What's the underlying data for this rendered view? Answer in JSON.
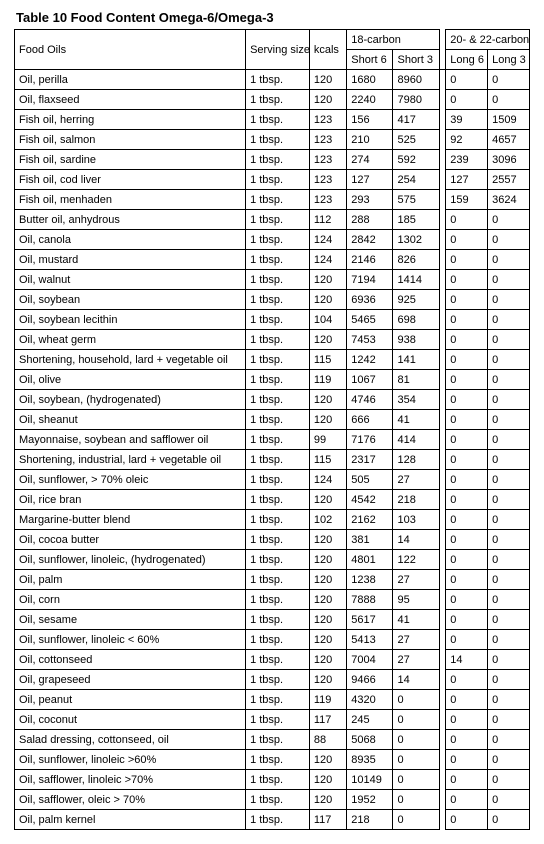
{
  "title": "Table 10 Food Content Omega-6/Omega-3",
  "headers": {
    "food": "Food Oils",
    "serving": "Serving size",
    "kcals": "kcals",
    "group18": "18-carbon",
    "group2022": "20- & 22-carbon",
    "short6": "Short 6",
    "short3": "Short 3",
    "long6": "Long 6",
    "long3": "Long 3"
  },
  "rows": [
    {
      "food": "Oil, perilla",
      "serv": "1 tbsp.",
      "kcal": "120",
      "s6": "1680",
      "s3": "8960",
      "l6": "0",
      "l3": "0"
    },
    {
      "food": "Oil, flaxseed",
      "serv": "1 tbsp.",
      "kcal": "120",
      "s6": "2240",
      "s3": "7980",
      "l6": "0",
      "l3": "0"
    },
    {
      "food": "Fish oil, herring",
      "serv": "1 tbsp.",
      "kcal": "123",
      "s6": "156",
      "s3": "417",
      "l6": "39",
      "l3": "1509"
    },
    {
      "food": "Fish oil, salmon",
      "serv": "1 tbsp.",
      "kcal": "123",
      "s6": "210",
      "s3": "525",
      "l6": "92",
      "l3": "4657"
    },
    {
      "food": "Fish oil, sardine",
      "serv": "1 tbsp.",
      "kcal": "123",
      "s6": "274",
      "s3": "592",
      "l6": "239",
      "l3": "3096"
    },
    {
      "food": "Fish oil, cod liver",
      "serv": "1 tbsp.",
      "kcal": "123",
      "s6": "127",
      "s3": "254",
      "l6": "127",
      "l3": "2557"
    },
    {
      "food": "Fish oil, menhaden",
      "serv": "1 tbsp.",
      "kcal": "123",
      "s6": "293",
      "s3": "575",
      "l6": "159",
      "l3": "3624"
    },
    {
      "food": "Butter oil, anhydrous",
      "serv": "1 tbsp.",
      "kcal": "112",
      "s6": "288",
      "s3": "185",
      "l6": "0",
      "l3": "0"
    },
    {
      "food": "Oil, canola",
      "serv": "1 tbsp.",
      "kcal": "124",
      "s6": "2842",
      "s3": "1302",
      "l6": "0",
      "l3": "0"
    },
    {
      "food": "Oil, mustard",
      "serv": "1 tbsp.",
      "kcal": "124",
      "s6": "2146",
      "s3": "826",
      "l6": "0",
      "l3": "0"
    },
    {
      "food": "Oil, walnut",
      "serv": "1 tbsp.",
      "kcal": "120",
      "s6": "7194",
      "s3": "1414",
      "l6": "0",
      "l3": "0"
    },
    {
      "food": "Oil, soybean",
      "serv": "1 tbsp.",
      "kcal": "120",
      "s6": "6936",
      "s3": "925",
      "l6": "0",
      "l3": "0"
    },
    {
      "food": "Oil, soybean lecithin",
      "serv": "1 tbsp.",
      "kcal": "104",
      "s6": "5465",
      "s3": "698",
      "l6": "0",
      "l3": "0"
    },
    {
      "food": "Oil, wheat germ",
      "serv": "1 tbsp.",
      "kcal": "120",
      "s6": "7453",
      "s3": "938",
      "l6": "0",
      "l3": "0"
    },
    {
      "food": "Shortening, household, lard + vegetable oil",
      "serv": "1 tbsp.",
      "kcal": "115",
      "s6": "1242",
      "s3": "141",
      "l6": "0",
      "l3": "0"
    },
    {
      "food": "Oil, olive",
      "serv": "1 tbsp.",
      "kcal": "119",
      "s6": "1067",
      "s3": "81",
      "l6": "0",
      "l3": "0"
    },
    {
      "food": "Oil, soybean, (hydrogenated)",
      "serv": "1 tbsp.",
      "kcal": "120",
      "s6": "4746",
      "s3": "354",
      "l6": "0",
      "l3": "0"
    },
    {
      "food": "Oil, sheanut",
      "serv": "1 tbsp.",
      "kcal": "120",
      "s6": "666",
      "s3": "41",
      "l6": "0",
      "l3": "0"
    },
    {
      "food": "Mayonnaise, soybean and safflower oil",
      "serv": "1 tbsp.",
      "kcal": "99",
      "s6": "7176",
      "s3": "414",
      "l6": "0",
      "l3": "0"
    },
    {
      "food": "Shortening, industrial, lard + vegetable oil",
      "serv": "1 tbsp.",
      "kcal": "115",
      "s6": "2317",
      "s3": "128",
      "l6": "0",
      "l3": "0"
    },
    {
      "food": "Oil, sunflower, > 70% oleic",
      "serv": "1 tbsp.",
      "kcal": "124",
      "s6": "505",
      "s3": "27",
      "l6": "0",
      "l3": "0"
    },
    {
      "food": "Oil, rice bran",
      "serv": "1 tbsp.",
      "kcal": "120",
      "s6": "4542",
      "s3": "218",
      "l6": "0",
      "l3": "0"
    },
    {
      "food": "Margarine-butter blend",
      "serv": "1 tbsp.",
      "kcal": "102",
      "s6": "2162",
      "s3": "103",
      "l6": "0",
      "l3": "0"
    },
    {
      "food": "Oil, cocoa butter",
      "serv": "1 tbsp.",
      "kcal": "120",
      "s6": "381",
      "s3": "14",
      "l6": "0",
      "l3": "0"
    },
    {
      "food": "Oil, sunflower, linoleic, (hydrogenated)",
      "serv": "1 tbsp.",
      "kcal": "120",
      "s6": "4801",
      "s3": "122",
      "l6": "0",
      "l3": "0"
    },
    {
      "food": "Oil, palm",
      "serv": "1 tbsp.",
      "kcal": "120",
      "s6": "1238",
      "s3": "27",
      "l6": "0",
      "l3": "0"
    },
    {
      "food": "Oil, corn",
      "serv": "1 tbsp.",
      "kcal": "120",
      "s6": "7888",
      "s3": "95",
      "l6": "0",
      "l3": "0"
    },
    {
      "food": "Oil, sesame",
      "serv": "1 tbsp.",
      "kcal": "120",
      "s6": "5617",
      "s3": "41",
      "l6": "0",
      "l3": "0"
    },
    {
      "food": "Oil, sunflower, linoleic < 60%",
      "serv": "1 tbsp.",
      "kcal": "120",
      "s6": "5413",
      "s3": "27",
      "l6": "0",
      "l3": "0"
    },
    {
      "food": "Oil, cottonseed",
      "serv": "1 tbsp.",
      "kcal": "120",
      "s6": "7004",
      "s3": "27",
      "l6": "14",
      "l3": "0"
    },
    {
      "food": "Oil, grapeseed",
      "serv": "1 tbsp.",
      "kcal": "120",
      "s6": "9466",
      "s3": "14",
      "l6": "0",
      "l3": "0"
    },
    {
      "food": "Oil, peanut",
      "serv": "1 tbsp.",
      "kcal": "119",
      "s6": "4320",
      "s3": "0",
      "l6": "0",
      "l3": "0"
    },
    {
      "food": "Oil, coconut",
      "serv": "1 tbsp.",
      "kcal": "117",
      "s6": "245",
      "s3": "0",
      "l6": "0",
      "l3": "0"
    },
    {
      "food": "Salad dressing, cottonseed, oil",
      "serv": "1 tbsp.",
      "kcal": "88",
      "s6": "5068",
      "s3": "0",
      "l6": "0",
      "l3": "0"
    },
    {
      "food": "Oil, sunflower, linoleic >60%",
      "serv": "1 tbsp.",
      "kcal": "120",
      "s6": "8935",
      "s3": "0",
      "l6": "0",
      "l3": "0"
    },
    {
      "food": "Oil, safflower, linoleic >70%",
      "serv": "1 tbsp.",
      "kcal": "120",
      "s6": "10149",
      "s3": "0",
      "l6": "0",
      "l3": "0"
    },
    {
      "food": "Oil, safflower, oleic > 70%",
      "serv": "1 tbsp.",
      "kcal": "120",
      "s6": "1952",
      "s3": "0",
      "l6": "0",
      "l3": "0"
    },
    {
      "food": "Oil, palm kernel",
      "serv": "1 tbsp.",
      "kcal": "117",
      "s6": "218",
      "s3": "0",
      "l6": "0",
      "l3": "0"
    }
  ]
}
